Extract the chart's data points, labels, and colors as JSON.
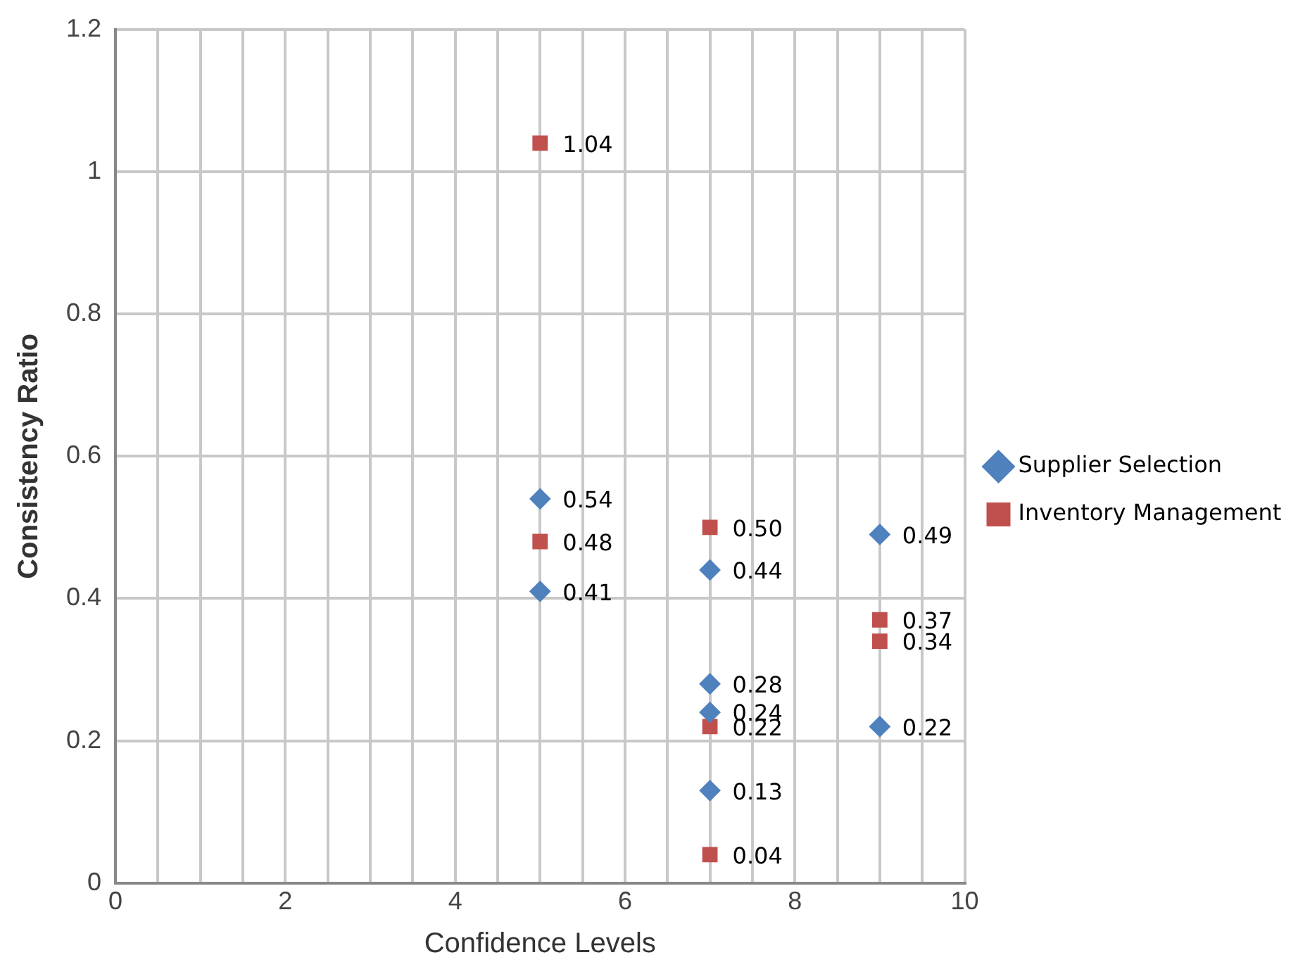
{
  "chart_data": {
    "type": "scatter",
    "xlabel": "Confidence Levels",
    "ylabel": "Consistency Ratio",
    "xlim": [
      0,
      10
    ],
    "ylim": [
      0,
      1.2
    ],
    "xticks": [
      0,
      {
        "value": 0.5,
        "label": null
      },
      {
        "value": 1,
        "label": null
      },
      {
        "value": 1.5,
        "label": null
      },
      2,
      {
        "value": 2.5,
        "label": null
      },
      {
        "value": 3,
        "label": null
      },
      {
        "value": 3.5,
        "label": null
      },
      4,
      {
        "value": 4.5,
        "label": null
      },
      {
        "value": 5,
        "label": null
      },
      {
        "value": 5.5,
        "label": null
      },
      6,
      {
        "value": 6.5,
        "label": null
      },
      {
        "value": 7,
        "label": null
      },
      {
        "value": 7.5,
        "label": null
      },
      8,
      {
        "value": 8.5,
        "label": null
      },
      {
        "value": 9,
        "label": null
      },
      {
        "value": 9.5,
        "label": null
      },
      10
    ],
    "yticks": [
      0,
      0.2,
      0.4,
      0.6,
      0.8,
      1,
      1.2
    ],
    "grid": true,
    "legend": "right",
    "series": [
      {
        "name": "Supplier Selection",
        "color": "#4f81bd",
        "marker": "diamond",
        "x": [
          5,
          5,
          7,
          7,
          7,
          7,
          9,
          9
        ],
        "values": [
          0.54,
          0.41,
          0.44,
          0.28,
          0.24,
          0.13,
          0.49,
          0.22
        ],
        "value_labels": [
          "0.54",
          "0.41",
          "0.44",
          "0.28",
          "0.24",
          "0.13",
          "0.49",
          "0.22"
        ]
      },
      {
        "name": "Inventory Management",
        "color": "#c0504d",
        "marker": "square",
        "x": [
          5,
          5,
          7,
          7,
          7,
          9,
          9
        ],
        "values": [
          1.04,
          0.48,
          0.5,
          0.22,
          0.04,
          0.37,
          0.34
        ],
        "value_labels": [
          "1.04",
          "0.48",
          "0.50",
          "0.22",
          "0.04",
          "0.37",
          "0.34"
        ]
      }
    ]
  }
}
